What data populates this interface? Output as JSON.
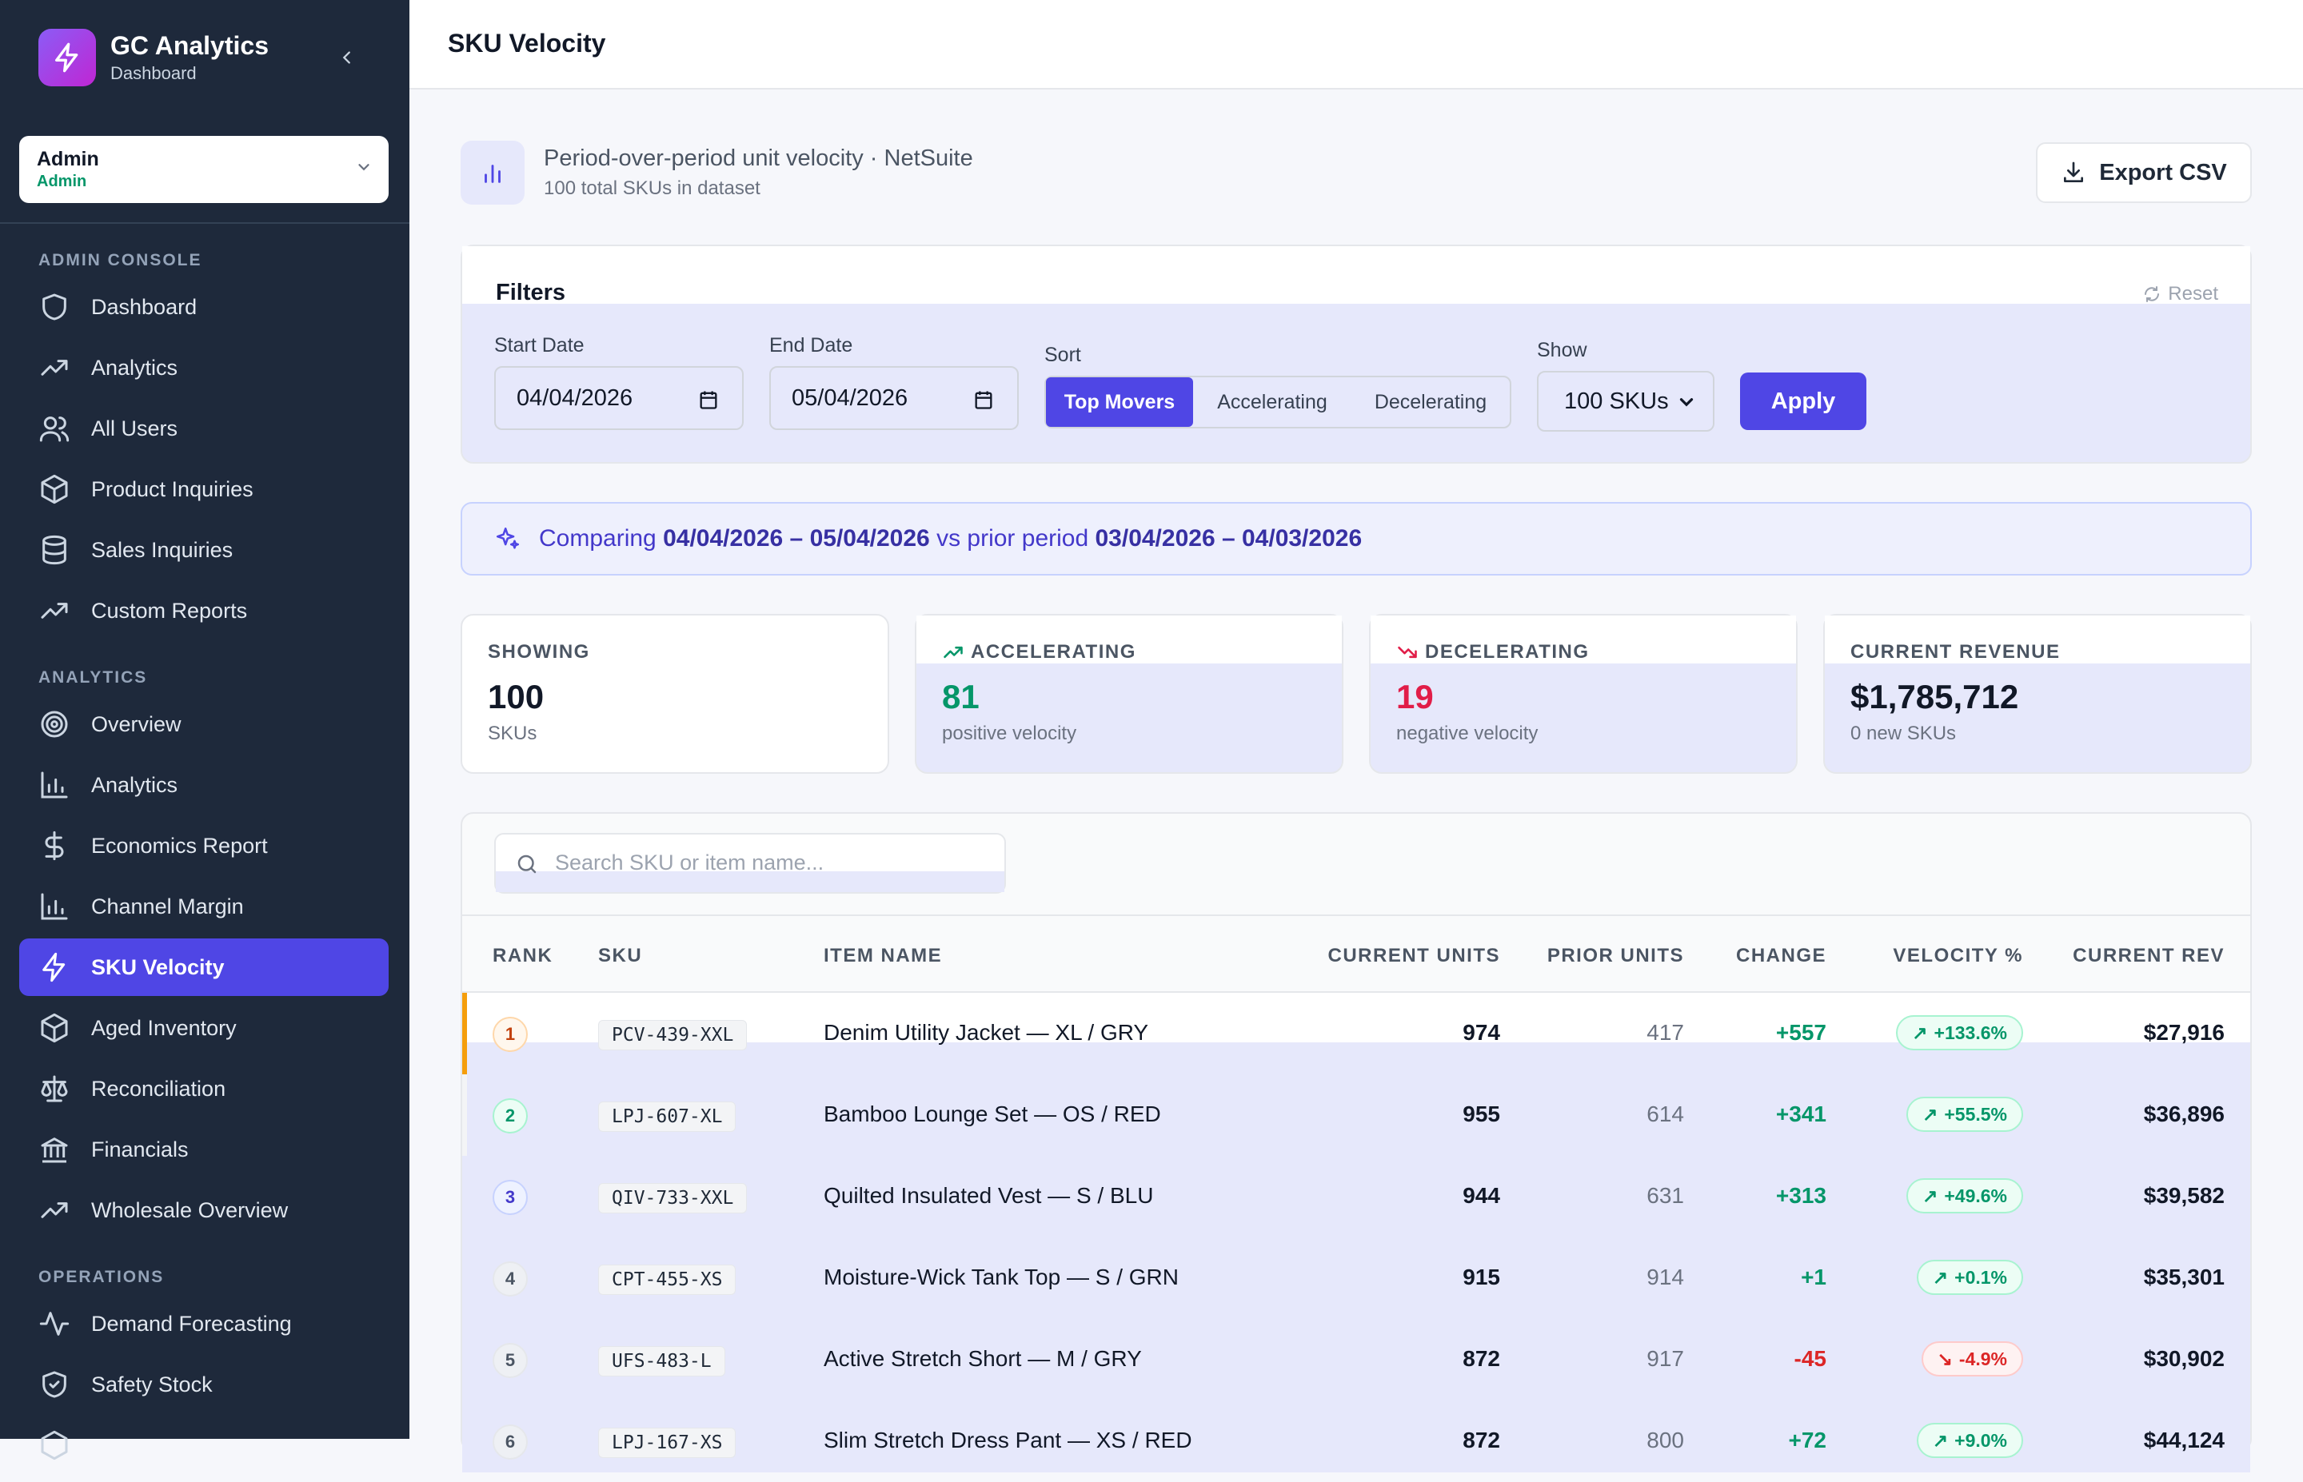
{
  "brand": {
    "title": "GC Analytics",
    "subtitle": "Dashboard"
  },
  "role": {
    "name": "Admin",
    "sub": "Admin"
  },
  "sidebar": {
    "sections": [
      {
        "label": "ADMIN CONSOLE",
        "items": [
          {
            "label": "Dashboard",
            "icon": "shield-icon"
          },
          {
            "label": "Analytics",
            "icon": "trending-up-icon"
          },
          {
            "label": "All Users",
            "icon": "users-icon"
          },
          {
            "label": "Product Inquiries",
            "icon": "box-icon"
          },
          {
            "label": "Sales Inquiries",
            "icon": "database-icon"
          },
          {
            "label": "Custom Reports",
            "icon": "trending-up-icon"
          }
        ]
      },
      {
        "label": "ANALYTICS",
        "items": [
          {
            "label": "Overview",
            "icon": "target-icon"
          },
          {
            "label": "Analytics",
            "icon": "bar-chart-icon"
          },
          {
            "label": "Economics Report",
            "icon": "dollar-icon"
          },
          {
            "label": "Channel Margin",
            "icon": "bar-chart-icon"
          },
          {
            "label": "SKU Velocity",
            "icon": "zap-icon",
            "active": true
          },
          {
            "label": "Aged Inventory",
            "icon": "box-icon"
          },
          {
            "label": "Reconciliation",
            "icon": "scale-icon"
          },
          {
            "label": "Financials",
            "icon": "bank-icon"
          },
          {
            "label": "Wholesale Overview",
            "icon": "trending-up-icon"
          }
        ]
      },
      {
        "label": "OPERATIONS",
        "items": [
          {
            "label": "Demand Forecasting",
            "icon": "activity-icon"
          },
          {
            "label": "Safety Stock",
            "icon": "shield-check-icon"
          }
        ]
      }
    ]
  },
  "page": {
    "title": "SKU Velocity"
  },
  "header": {
    "title": "Period-over-period unit velocity · NetSuite",
    "subtitle": "100 total SKUs in dataset",
    "export_label": "Export CSV"
  },
  "filters": {
    "title": "Filters",
    "reset_label": "Reset",
    "start_label": "Start Date",
    "start_value": "04/04/2026",
    "end_label": "End Date",
    "end_value": "05/04/2026",
    "sort_label": "Sort",
    "sort_options": [
      "Top Movers",
      "Accelerating",
      "Decelerating"
    ],
    "sort_selected": "Top Movers",
    "show_label": "Show",
    "show_value": "100 SKUs",
    "apply_label": "Apply"
  },
  "compare": {
    "prefix": "Comparing ",
    "current_range": "04/04/2026 – 05/04/2026",
    "middle": " vs prior period ",
    "prior_range": "03/04/2026 – 04/03/2026"
  },
  "stats": [
    {
      "label": "SHOWING",
      "value": "100",
      "sub": "SKUs",
      "color": "#111827"
    },
    {
      "label": "ACCELERATING",
      "value": "81",
      "sub": "positive velocity",
      "color": "#059669",
      "icon": "trending-up-icon"
    },
    {
      "label": "DECELERATING",
      "value": "19",
      "sub": "negative velocity",
      "color": "#e11d48",
      "icon": "trending-down-icon"
    },
    {
      "label": "CURRENT REVENUE",
      "value": "$1,785,712",
      "sub": "0 new SKUs",
      "color": "#111827"
    }
  ],
  "table": {
    "search_placeholder": "Search SKU or item name...",
    "columns": [
      "RANK",
      "SKU",
      "ITEM NAME",
      "CURRENT UNITS",
      "PRIOR UNITS",
      "CHANGE",
      "VELOCITY %",
      "CURRENT REV"
    ],
    "rows": [
      {
        "rank": "1",
        "sku": "PCV-439-XXL",
        "name": "Denim Utility Jacket — XL / GRY",
        "current": "974",
        "prior": "417",
        "change": "+557",
        "velocity": "+133.6%",
        "dir": "up",
        "rev": "$27,916"
      },
      {
        "rank": "2",
        "sku": "LPJ-607-XL",
        "name": "Bamboo Lounge Set — OS / RED",
        "current": "955",
        "prior": "614",
        "change": "+341",
        "velocity": "+55.5%",
        "dir": "up",
        "rev": "$36,896"
      },
      {
        "rank": "3",
        "sku": "QIV-733-XXL",
        "name": "Quilted Insulated Vest — S / BLU",
        "current": "944",
        "prior": "631",
        "change": "+313",
        "velocity": "+49.6%",
        "dir": "up",
        "rev": "$39,582"
      },
      {
        "rank": "4",
        "sku": "CPT-455-XS",
        "name": "Moisture-Wick Tank Top — S / GRN",
        "current": "915",
        "prior": "914",
        "change": "+1",
        "velocity": "+0.1%",
        "dir": "up",
        "rev": "$35,301"
      },
      {
        "rank": "5",
        "sku": "UFS-483-L",
        "name": "Active Stretch Short — M / GRY",
        "current": "872",
        "prior": "917",
        "change": "-45",
        "velocity": "-4.9%",
        "dir": "down",
        "rev": "$30,902"
      },
      {
        "rank": "6",
        "sku": "LPJ-167-XS",
        "name": "Slim Stretch Dress Pant — XS / RED",
        "current": "872",
        "prior": "800",
        "change": "+72",
        "velocity": "+9.0%",
        "dir": "up",
        "rev": "$44,124"
      }
    ]
  }
}
